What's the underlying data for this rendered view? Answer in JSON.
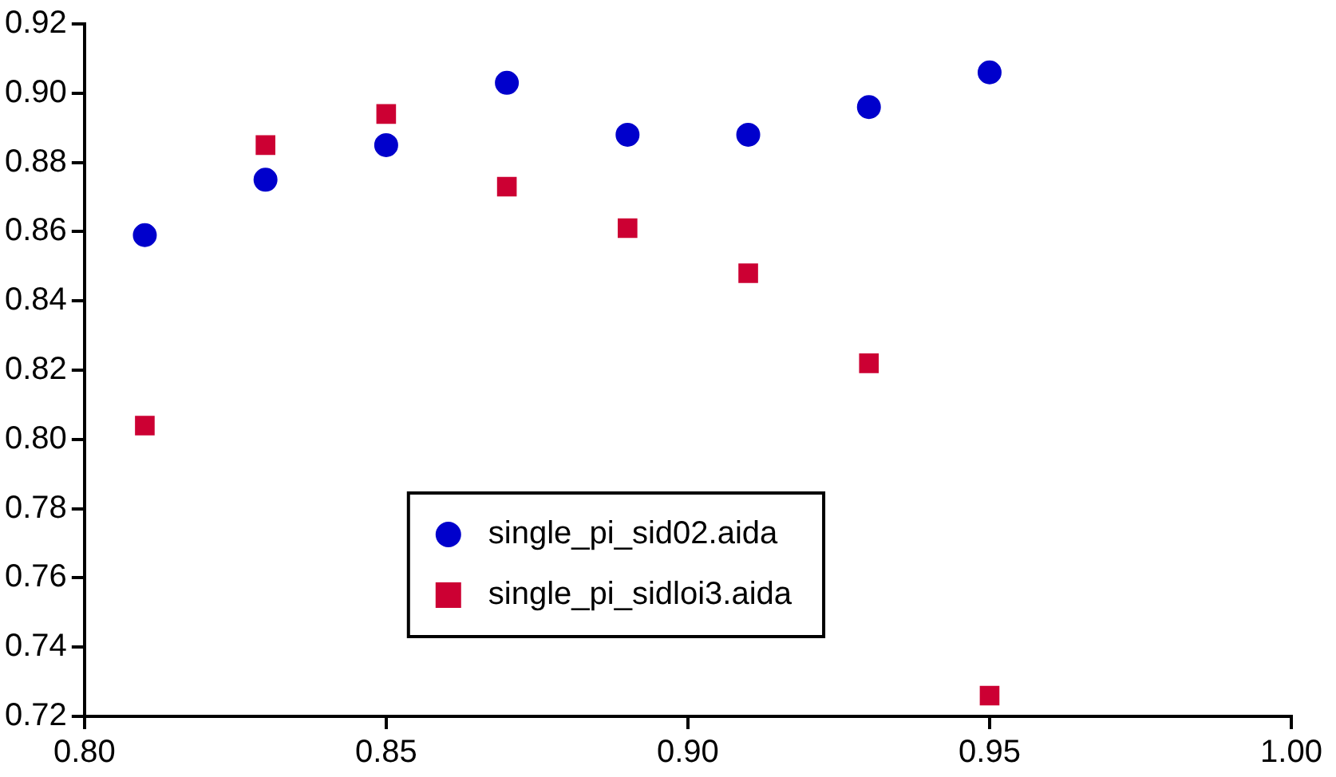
{
  "chart_data": {
    "type": "scatter",
    "x": [
      0.81,
      0.83,
      0.85,
      0.87,
      0.89,
      0.91,
      0.93,
      0.95
    ],
    "series": [
      {
        "name": "single_pi_sid02.aida",
        "color": "#0000cc",
        "marker": "circle",
        "values": [
          0.859,
          0.875,
          0.885,
          0.903,
          0.888,
          0.888,
          0.896,
          0.906
        ]
      },
      {
        "name": "single_pi_sidloi3.aida",
        "color": "#cc0033",
        "marker": "square",
        "values": [
          0.804,
          0.885,
          0.894,
          0.873,
          0.861,
          0.848,
          0.822,
          0.726
        ]
      }
    ],
    "xlim": [
      0.8,
      1.0
    ],
    "xticks": [
      {
        "value": 0.8,
        "label": "0.80"
      },
      {
        "value": 0.85,
        "label": "0.85"
      },
      {
        "value": 0.9,
        "label": "0.90"
      },
      {
        "value": 0.95,
        "label": "0.95"
      },
      {
        "value": 1.0,
        "label": "1.00"
      }
    ],
    "ylim": [
      0.72,
      0.92
    ],
    "yticks": [
      {
        "value": 0.72,
        "label": "0.72"
      },
      {
        "value": 0.74,
        "label": "0.74"
      },
      {
        "value": 0.76,
        "label": "0.76"
      },
      {
        "value": 0.78,
        "label": "0.78"
      },
      {
        "value": 0.8,
        "label": "0.80"
      },
      {
        "value": 0.82,
        "label": "0.82"
      },
      {
        "value": 0.84,
        "label": "0.84"
      },
      {
        "value": 0.86,
        "label": "0.86"
      },
      {
        "value": 0.88,
        "label": "0.88"
      },
      {
        "value": 0.9,
        "label": "0.90"
      },
      {
        "value": 0.92,
        "label": "0.92"
      }
    ],
    "grid": false,
    "legend": "bottom"
  }
}
